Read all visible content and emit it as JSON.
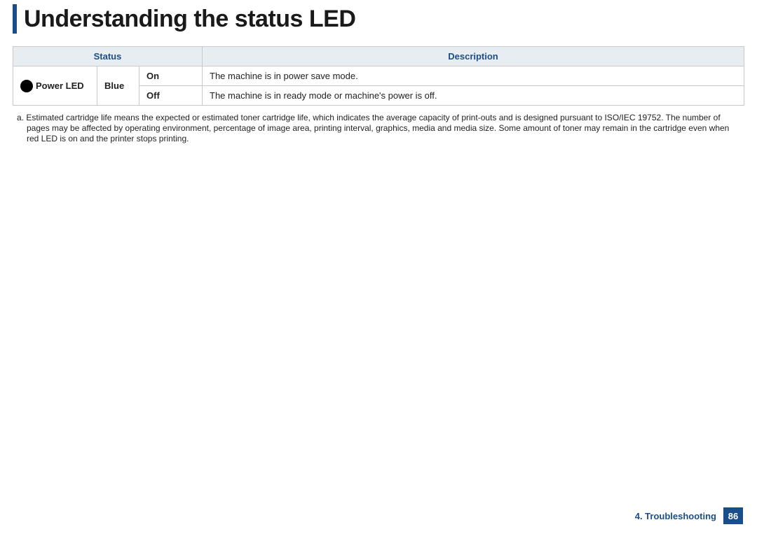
{
  "colors": {
    "brand": "#1a4e8a",
    "header_bg": "#e8edf1",
    "border": "#c9c9c9",
    "text": "#222222",
    "page_bg": "#ffffff",
    "led_dot": "#000000"
  },
  "title": "Understanding the status LED",
  "table": {
    "headers": {
      "status": "Status",
      "description": "Description"
    },
    "led_label_prefix": "",
    "led_name": "Power LED",
    "color": "Blue",
    "rows": [
      {
        "state": "On",
        "description": "The machine is in power save mode."
      },
      {
        "state": "Off",
        "description": "The machine is in ready mode or machine's power is off."
      }
    ]
  },
  "footnote": {
    "marker": "a.",
    "text": "Estimated cartridge life means the expected or estimated toner cartridge life, which indicates the average capacity of print-outs and is designed pursuant to ISO/IEC 19752. The number of pages may be affected by operating environment, percentage of image area, printing interval, graphics, media and media size. Some amount of toner may remain in the cartridge even when red LED is on and the printer stops printing."
  },
  "footer": {
    "chapter": "4.  Troubleshooting",
    "page": "86"
  }
}
